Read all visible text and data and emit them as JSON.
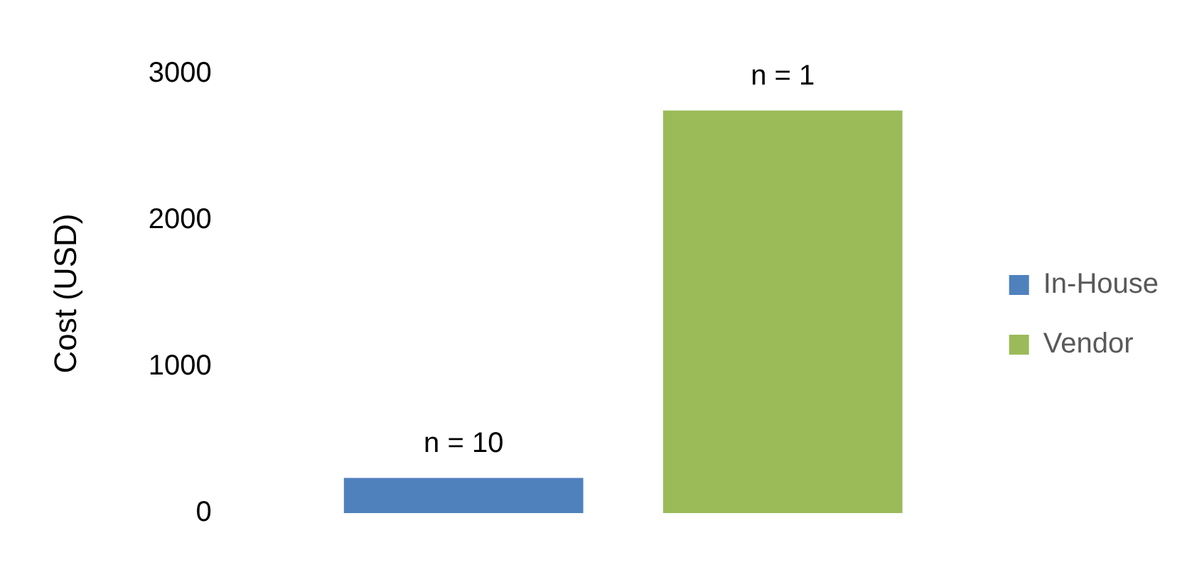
{
  "chart_data": {
    "type": "bar",
    "ylabel": "Cost (USD)",
    "categories": [
      null
    ],
    "series": [
      {
        "name": "In-House",
        "color": "#4f81bd",
        "values": [
          240
        ]
      },
      {
        "name": "Vendor",
        "color": "#9bbb59",
        "values": [
          2750
        ]
      }
    ],
    "ylim": [
      0,
      3000
    ],
    "yticks": [
      0,
      1000,
      2000,
      3000
    ],
    "grid": false,
    "legend": "right",
    "annotations": [
      {
        "text": "n = 10",
        "y": 240
      },
      {
        "text": "n = 1",
        "y": 2750
      }
    ]
  }
}
